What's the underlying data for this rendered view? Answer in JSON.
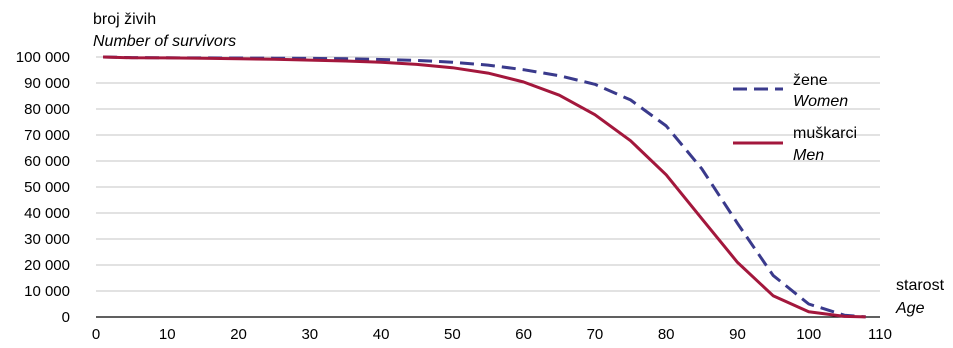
{
  "chart_data": {
    "type": "line",
    "ylabel": "broj živih",
    "ylabel_en": "Number of survivors",
    "xlabel": "starost",
    "xlabel_en": "Age",
    "xlim": [
      0,
      110
    ],
    "ylim": [
      0,
      100000
    ],
    "x_ticks": [
      "0",
      "10",
      "20",
      "30",
      "40",
      "50",
      "60",
      "70",
      "80",
      "90",
      "100",
      "110"
    ],
    "y_ticks": [
      "0",
      "10 000",
      "20 000",
      "30 000",
      "40 000",
      "50 000",
      "60 000",
      "70 000",
      "80 000",
      "90 000",
      "100 000"
    ],
    "grid": "horizontal",
    "legend_position": "top-right",
    "series": [
      {
        "name": "žene",
        "name_en": "Women",
        "color": "#3a3a8c",
        "style": "dashed",
        "x": [
          1,
          5,
          10,
          15,
          20,
          25,
          30,
          35,
          40,
          45,
          50,
          55,
          60,
          65,
          70,
          75,
          80,
          85,
          90,
          95,
          100,
          105,
          108
        ],
        "y": [
          100000,
          99750,
          99700,
          99650,
          99600,
          99550,
          99450,
          99300,
          99050,
          98700,
          98000,
          96900,
          95100,
          92800,
          89500,
          83500,
          73500,
          57000,
          36000,
          16000,
          5000,
          700,
          50
        ]
      },
      {
        "name": "muškarci",
        "name_en": "Men",
        "color": "#a3173c",
        "style": "solid",
        "x": [
          1,
          5,
          10,
          15,
          20,
          25,
          30,
          35,
          40,
          45,
          50,
          55,
          60,
          65,
          70,
          75,
          80,
          85,
          90,
          95,
          100,
          105,
          108
        ],
        "y": [
          100000,
          99700,
          99650,
          99550,
          99350,
          99100,
          98800,
          98450,
          97950,
          97150,
          95900,
          93800,
          90400,
          85300,
          77800,
          67800,
          54700,
          37800,
          21000,
          8200,
          2000,
          250,
          20
        ]
      }
    ]
  }
}
